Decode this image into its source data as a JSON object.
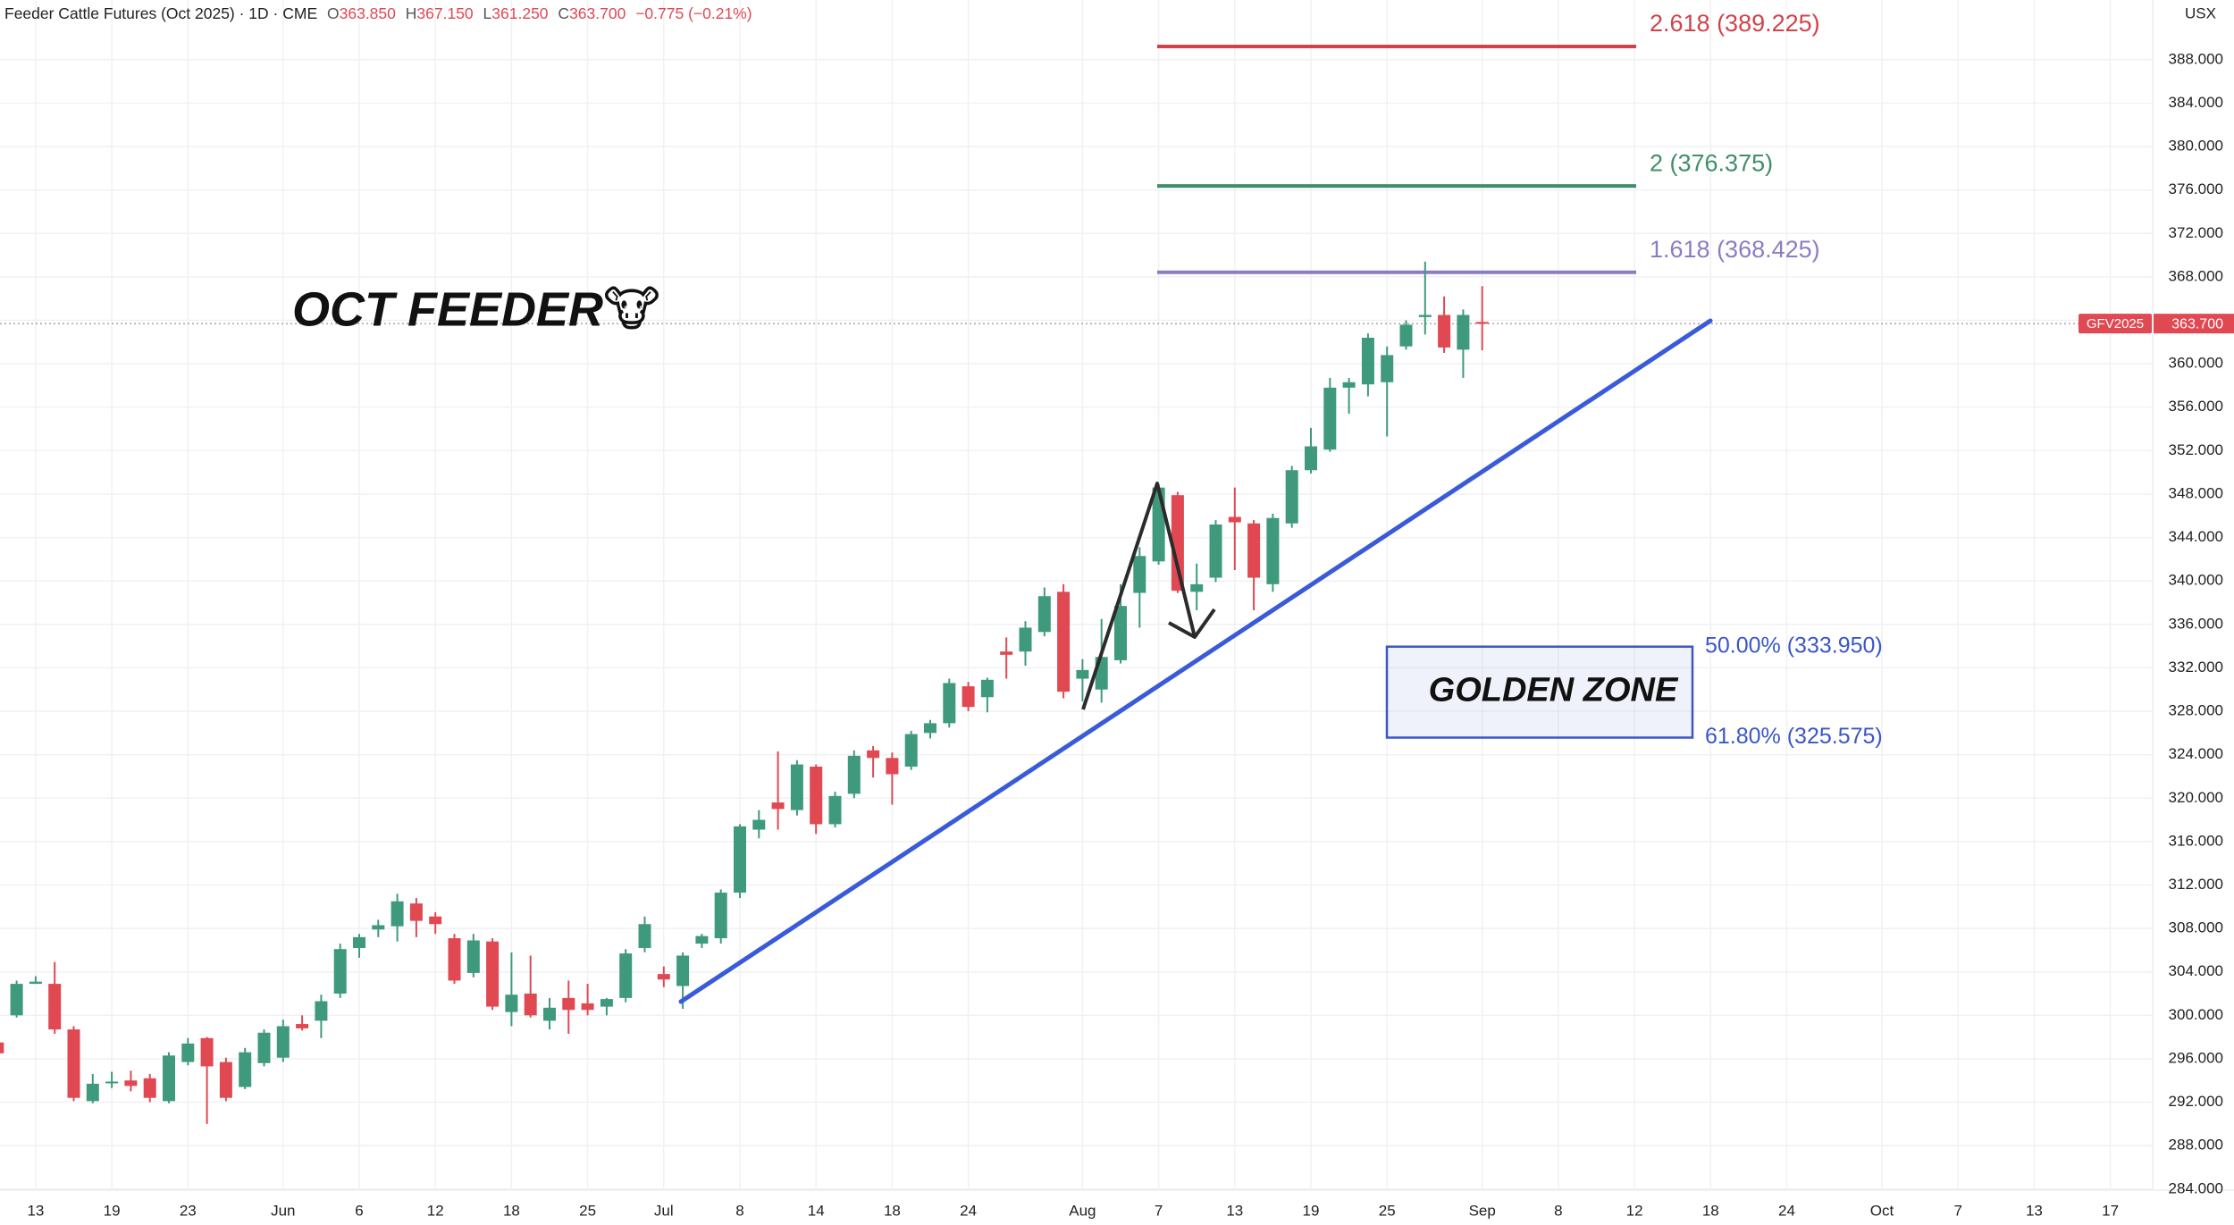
{
  "chart_data": {
    "type": "candlestick",
    "title": "Feeder Cattle Futures (Oct 2025) · 1D · CME",
    "ohlc_legend": [
      {
        "key": "O",
        "text": "363.850"
      },
      {
        "key": "H",
        "text": "367.150"
      },
      {
        "key": "L",
        "text": "361.250"
      },
      {
        "key": "C",
        "text": "363.700"
      }
    ],
    "change": "−0.775 (−0.21%)",
    "unit_label": "USX",
    "annotation": "OCT FEEDER🐮",
    "categories": [
      null,
      null,
      "13",
      null,
      null,
      null,
      "19",
      null,
      null,
      null,
      "23",
      null,
      null,
      null,
      null,
      "Jun",
      null,
      null,
      null,
      "6",
      null,
      null,
      null,
      "12",
      null,
      null,
      null,
      "18",
      null,
      null,
      null,
      "25",
      null,
      null,
      null,
      "Jul",
      null,
      null,
      null,
      "8",
      null,
      null,
      null,
      "14",
      null,
      null,
      null,
      "18",
      null,
      null,
      null,
      "24",
      null,
      null,
      null,
      null,
      null,
      "Aug",
      null,
      null,
      null,
      "7",
      null,
      null,
      null,
      "13",
      null,
      null,
      null,
      "19",
      null,
      null,
      null,
      "25",
      null,
      null,
      null,
      null,
      "Sep",
      null,
      null,
      null,
      "8",
      null,
      null,
      null,
      "12",
      null,
      null,
      null,
      "18",
      null,
      null,
      null,
      "24",
      null,
      null,
      null,
      null,
      "Oct",
      null,
      null,
      null,
      "7",
      null,
      null,
      null,
      "13",
      null,
      null,
      null,
      "17",
      null
    ],
    "open": [
      297.5,
      300.0,
      302.9,
      302.9,
      298.7,
      292.1,
      293.8,
      294.0,
      294.2,
      292.1,
      295.7,
      297.9,
      295.7,
      293.4,
      295.6,
      296.1,
      299.2,
      299.5,
      302.0,
      306.2,
      307.9,
      308.2,
      310.3,
      309.1,
      307.1,
      303.9,
      306.8,
      300.3,
      302.0,
      299.5,
      301.6,
      301.1,
      300.8,
      301.6,
      306.2,
      303.8,
      302.7,
      306.6,
      307.1,
      311.3,
      317.1,
      319.6,
      318.9,
      322.9,
      317.6,
      320.4,
      324.4,
      323.7,
      322.9,
      326.0,
      326.9,
      330.3,
      329.3,
      333.5,
      333.5,
      335.3,
      339.0,
      331.0,
      330.0,
      332.7,
      338.9,
      341.8,
      347.9,
      339.0,
      340.3,
      345.9,
      345.3,
      339.7,
      345.3,
      350.2,
      352.1,
      357.8,
      358.1,
      358.3,
      361.6,
      364.3,
      364.5,
      361.3,
      363.85,
      null,
      null,
      null,
      null,
      null,
      null,
      null,
      null,
      null,
      null,
      null,
      null,
      null,
      null,
      null,
      null,
      null,
      null,
      null,
      null,
      null,
      null,
      null,
      null,
      null,
      null,
      null,
      null,
      null,
      null,
      null,
      null,
      null,
      null
    ],
    "high": [
      298,
      303.2,
      303.6,
      304.9,
      299.0,
      294.6,
      294.8,
      294.9,
      294.6,
      296.6,
      297.9,
      298.0,
      296.1,
      297.0,
      298.7,
      299.6,
      300.0,
      301.9,
      306.6,
      307.5,
      308.8,
      311.2,
      310.8,
      309.5,
      307.5,
      307.5,
      307.1,
      305.8,
      305.5,
      301.6,
      303.2,
      302.9,
      301.6,
      306.1,
      309.1,
      304.5,
      305.8,
      307.5,
      311.6,
      317.6,
      318.9,
      324.3,
      323.5,
      323.1,
      320.6,
      324.4,
      324.8,
      324.2,
      326.2,
      327.2,
      331.0,
      330.7,
      331.1,
      334.8,
      336.3,
      339.4,
      339.7,
      332.8,
      336.5,
      339.7,
      343.1,
      348.9,
      348.2,
      341.6,
      345.6,
      348.6,
      345.6,
      346.2,
      350.6,
      354.1,
      358.7,
      358.7,
      362.8,
      361.6,
      364.0,
      369.4,
      366.2,
      365.0,
      367.15,
      null,
      null,
      null,
      null,
      null,
      null,
      null,
      null,
      null,
      null,
      null,
      null,
      null,
      null,
      null,
      null,
      null,
      null,
      null,
      null,
      null,
      null,
      null,
      null,
      null,
      null,
      null,
      null,
      null,
      null,
      null,
      null,
      null,
      null
    ],
    "low": [
      296,
      299.8,
      302.9,
      298.3,
      292.1,
      291.9,
      293.3,
      293.0,
      292.0,
      291.9,
      295.4,
      290.0,
      292.1,
      293.2,
      295.3,
      295.7,
      298.6,
      297.9,
      301.6,
      305.3,
      307.2,
      306.8,
      307.2,
      307.5,
      302.9,
      303.5,
      300.5,
      299.0,
      299.8,
      298.7,
      298.3,
      300.0,
      300.0,
      301.2,
      305.8,
      302.6,
      300.6,
      306.2,
      306.6,
      310.8,
      316.3,
      317.1,
      318.4,
      316.7,
      317.3,
      320.0,
      321.9,
      319.4,
      322.6,
      325.5,
      326.5,
      328.0,
      327.9,
      331.0,
      332.2,
      334.9,
      329.2,
      328.9,
      328.8,
      332.4,
      335.7,
      341.5,
      338.9,
      337.3,
      339.9,
      341.0,
      337.3,
      339.0,
      344.9,
      349.9,
      351.9,
      355.4,
      357.0,
      353.3,
      361.3,
      362.7,
      361.0,
      358.7,
      361.25,
      null,
      null,
      null,
      null,
      null,
      null,
      null,
      null,
      null,
      null,
      null,
      null,
      null,
      null,
      null,
      null,
      null,
      null,
      null,
      null,
      null,
      null,
      null,
      null,
      null,
      null,
      null,
      null,
      null,
      null,
      null,
      null,
      null,
      null
    ],
    "close": [
      296.5,
      302.9,
      303.1,
      298.7,
      292.4,
      293.7,
      293.9,
      293.5,
      292.4,
      296.3,
      297.4,
      295.3,
      292.4,
      296.6,
      298.4,
      299.0,
      298.8,
      301.3,
      306.1,
      307.2,
      308.3,
      310.5,
      308.7,
      308.4,
      303.2,
      306.9,
      300.8,
      301.9,
      300.0,
      300.7,
      300.5,
      300.5,
      301.5,
      305.7,
      308.4,
      303.3,
      305.5,
      307.3,
      311.3,
      317.4,
      318.0,
      319.0,
      323.1,
      317.6,
      320.2,
      323.9,
      323.7,
      322.2,
      325.9,
      326.9,
      330.6,
      328.4,
      330.9,
      333.2,
      335.7,
      338.6,
      329.8,
      331.8,
      333.0,
      337.7,
      342.3,
      348.6,
      339.1,
      339.7,
      345.2,
      345.4,
      340.3,
      345.8,
      350.2,
      352.4,
      357.8,
      358.3,
      362.4,
      360.8,
      363.6,
      364.5,
      361.5,
      364.5,
      363.7,
      null,
      null,
      null,
      null,
      null,
      null,
      null,
      null,
      null,
      null,
      null,
      null,
      null,
      null,
      null,
      null,
      null,
      null,
      null,
      null,
      null,
      null,
      null,
      null,
      null,
      null,
      null,
      null,
      null,
      null,
      null,
      null,
      null,
      null
    ],
    "up_color": "#3f9a7d",
    "down_color": "#e04852",
    "ylim": [
      283.9,
      393.5
    ],
    "yticks": [
      {
        "value": 284,
        "label": "284.000"
      },
      {
        "value": 288,
        "label": "288.000"
      },
      {
        "value": 292,
        "label": "292.000"
      },
      {
        "value": 296,
        "label": "296.000"
      },
      {
        "value": 300,
        "label": "300.000"
      },
      {
        "value": 304,
        "label": "304.000"
      },
      {
        "value": 308,
        "label": "308.000"
      },
      {
        "value": 312,
        "label": "312.000"
      },
      {
        "value": 316,
        "label": "316.000"
      },
      {
        "value": 320,
        "label": "320.000"
      },
      {
        "value": 324,
        "label": "324.000"
      },
      {
        "value": 328,
        "label": "328.000"
      },
      {
        "value": 332,
        "label": "332.000"
      },
      {
        "value": 336,
        "label": "336.000"
      },
      {
        "value": 340,
        "label": "340.000"
      },
      {
        "value": 344,
        "label": "344.000"
      },
      {
        "value": 348,
        "label": "348.000"
      },
      {
        "value": 352,
        "label": "352.000"
      },
      {
        "value": 356,
        "label": "356.000"
      },
      {
        "value": 360,
        "label": "360.000"
      },
      {
        "value": 364,
        "label": "364.000"
      },
      {
        "value": 368,
        "label": "368.000"
      },
      {
        "value": 372,
        "label": "372.000"
      },
      {
        "value": 376,
        "label": "376.000"
      },
      {
        "value": 380,
        "label": "380.000"
      },
      {
        "value": 384,
        "label": "384.000"
      },
      {
        "value": 388,
        "label": "388.000"
      }
    ],
    "grid": true,
    "last_price": {
      "name": "GFV2025",
      "value": 363.7,
      "label": "363.700",
      "color": "#e04852"
    },
    "fib_levels": [
      {
        "value": 389.225,
        "label": "2.618 (389.225)",
        "color": "#d1434b"
      },
      {
        "value": 376.375,
        "label": "2 (376.375)",
        "color": "#3f8f6a"
      },
      {
        "value": 368.425,
        "label": "1.618 (368.425)",
        "color": "#8e7cc3"
      }
    ],
    "golden_zone": {
      "label": "GOLDEN ZONE",
      "color": "#3a56c8",
      "levels": [
        {
          "value": 333.95,
          "label": "50.00% (333.950)"
        },
        {
          "value": 325.575,
          "label": "61.80% (325.575)"
        }
      ]
    }
  }
}
